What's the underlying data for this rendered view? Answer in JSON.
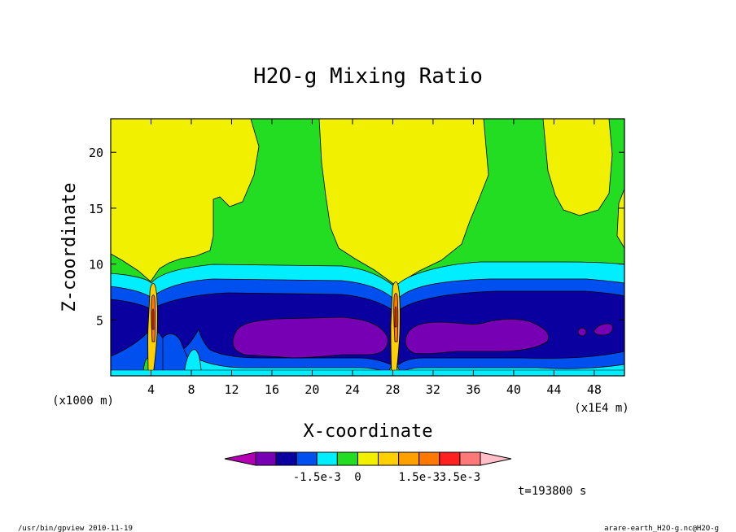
{
  "chart_data": {
    "type": "contour",
    "title": "H2O-g Mixing Ratio",
    "xlabel": "X-coordinate",
    "ylabel": "Z-coordinate",
    "x_unit": "(x1E4 m)",
    "y_unit": "(x1000 m)",
    "xlim": [
      0,
      51
    ],
    "ylim": [
      0,
      23
    ],
    "x_ticks": [
      {
        "value": 4,
        "label": "4"
      },
      {
        "value": 8,
        "label": "8"
      },
      {
        "value": 12,
        "label": "12"
      },
      {
        "value": 16,
        "label": "16"
      },
      {
        "value": 20,
        "label": "20"
      },
      {
        "value": 24,
        "label": "24"
      },
      {
        "value": 28,
        "label": "28"
      },
      {
        "value": 32,
        "label": "32"
      },
      {
        "value": 36,
        "label": "36"
      },
      {
        "value": 40,
        "label": "40"
      },
      {
        "value": 44,
        "label": "44"
      },
      {
        "value": 48,
        "label": "48"
      }
    ],
    "y_ticks": [
      {
        "value": 5,
        "label": "5"
      },
      {
        "value": 10,
        "label": "10"
      },
      {
        "value": 15,
        "label": "15"
      },
      {
        "value": 20,
        "label": "20"
      }
    ],
    "colorbar": {
      "colors": [
        "#b400b4",
        "#7800b4",
        "#0a00a0",
        "#0050f0",
        "#00eeff",
        "#22dd22",
        "#f0f000",
        "#ffd000",
        "#ffa000",
        "#ff7800",
        "#ff2020",
        "#ff7878",
        "#ffbec8"
      ],
      "labels": [
        "-1.5e-3",
        "0",
        "1.5e-3",
        "3.5e-3"
      ]
    },
    "time_label": "t=193800 s",
    "grid": false
  },
  "footer": {
    "left": "/usr/bin/gpview  2010-11-19",
    "right": "arare-earth_H2O-g.nc@H2O-g"
  }
}
